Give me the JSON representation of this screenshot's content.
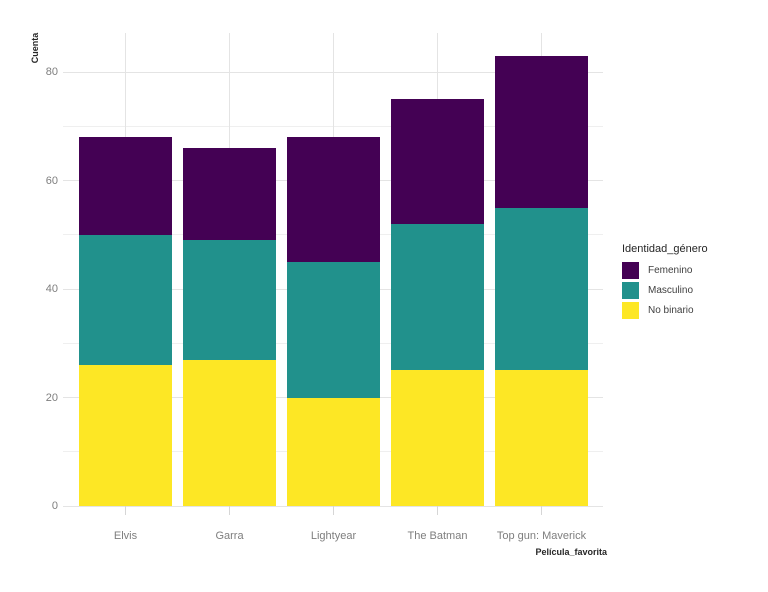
{
  "chart_data": {
    "type": "bar",
    "subtype": "stacked-vertical",
    "title": "",
    "xlabel": "Película_favorita",
    "ylabel": "Cuenta",
    "categories": [
      "Elvis",
      "Garra",
      "Lightyear",
      "The Batman",
      "Top gun: Maverick"
    ],
    "series": [
      {
        "name": "Femenino",
        "color": "#440154",
        "values": [
          18,
          17,
          23,
          23,
          28
        ]
      },
      {
        "name": "Masculino",
        "color": "#21918c",
        "values": [
          24,
          22,
          25,
          27,
          30
        ]
      },
      {
        "name": "No binario",
        "color": "#fde725",
        "values": [
          26,
          27,
          20,
          25,
          25
        ]
      }
    ],
    "stack_order_bottom_to_top": [
      "No binario",
      "Masculino",
      "Femenino"
    ],
    "totals": [
      68,
      66,
      68,
      75,
      83
    ],
    "y_major_ticks": [
      0,
      20,
      40,
      60,
      80
    ],
    "y_minor_ticks": [
      10,
      30,
      50,
      70
    ],
    "ylim": [
      0,
      87
    ],
    "grid": true,
    "legend_title": "Identidad_género",
    "legend_position": "right"
  },
  "colors": {
    "background": "#ffffff",
    "grid_major": "#e4e4e4",
    "grid_minor": "#efefef",
    "tick_mark": "#d6d6d6",
    "tick_text": "#7e7e7e",
    "axis_title_text": "#262626",
    "legend_title_text": "#262626",
    "legend_label_text": "#3f3f3f"
  }
}
